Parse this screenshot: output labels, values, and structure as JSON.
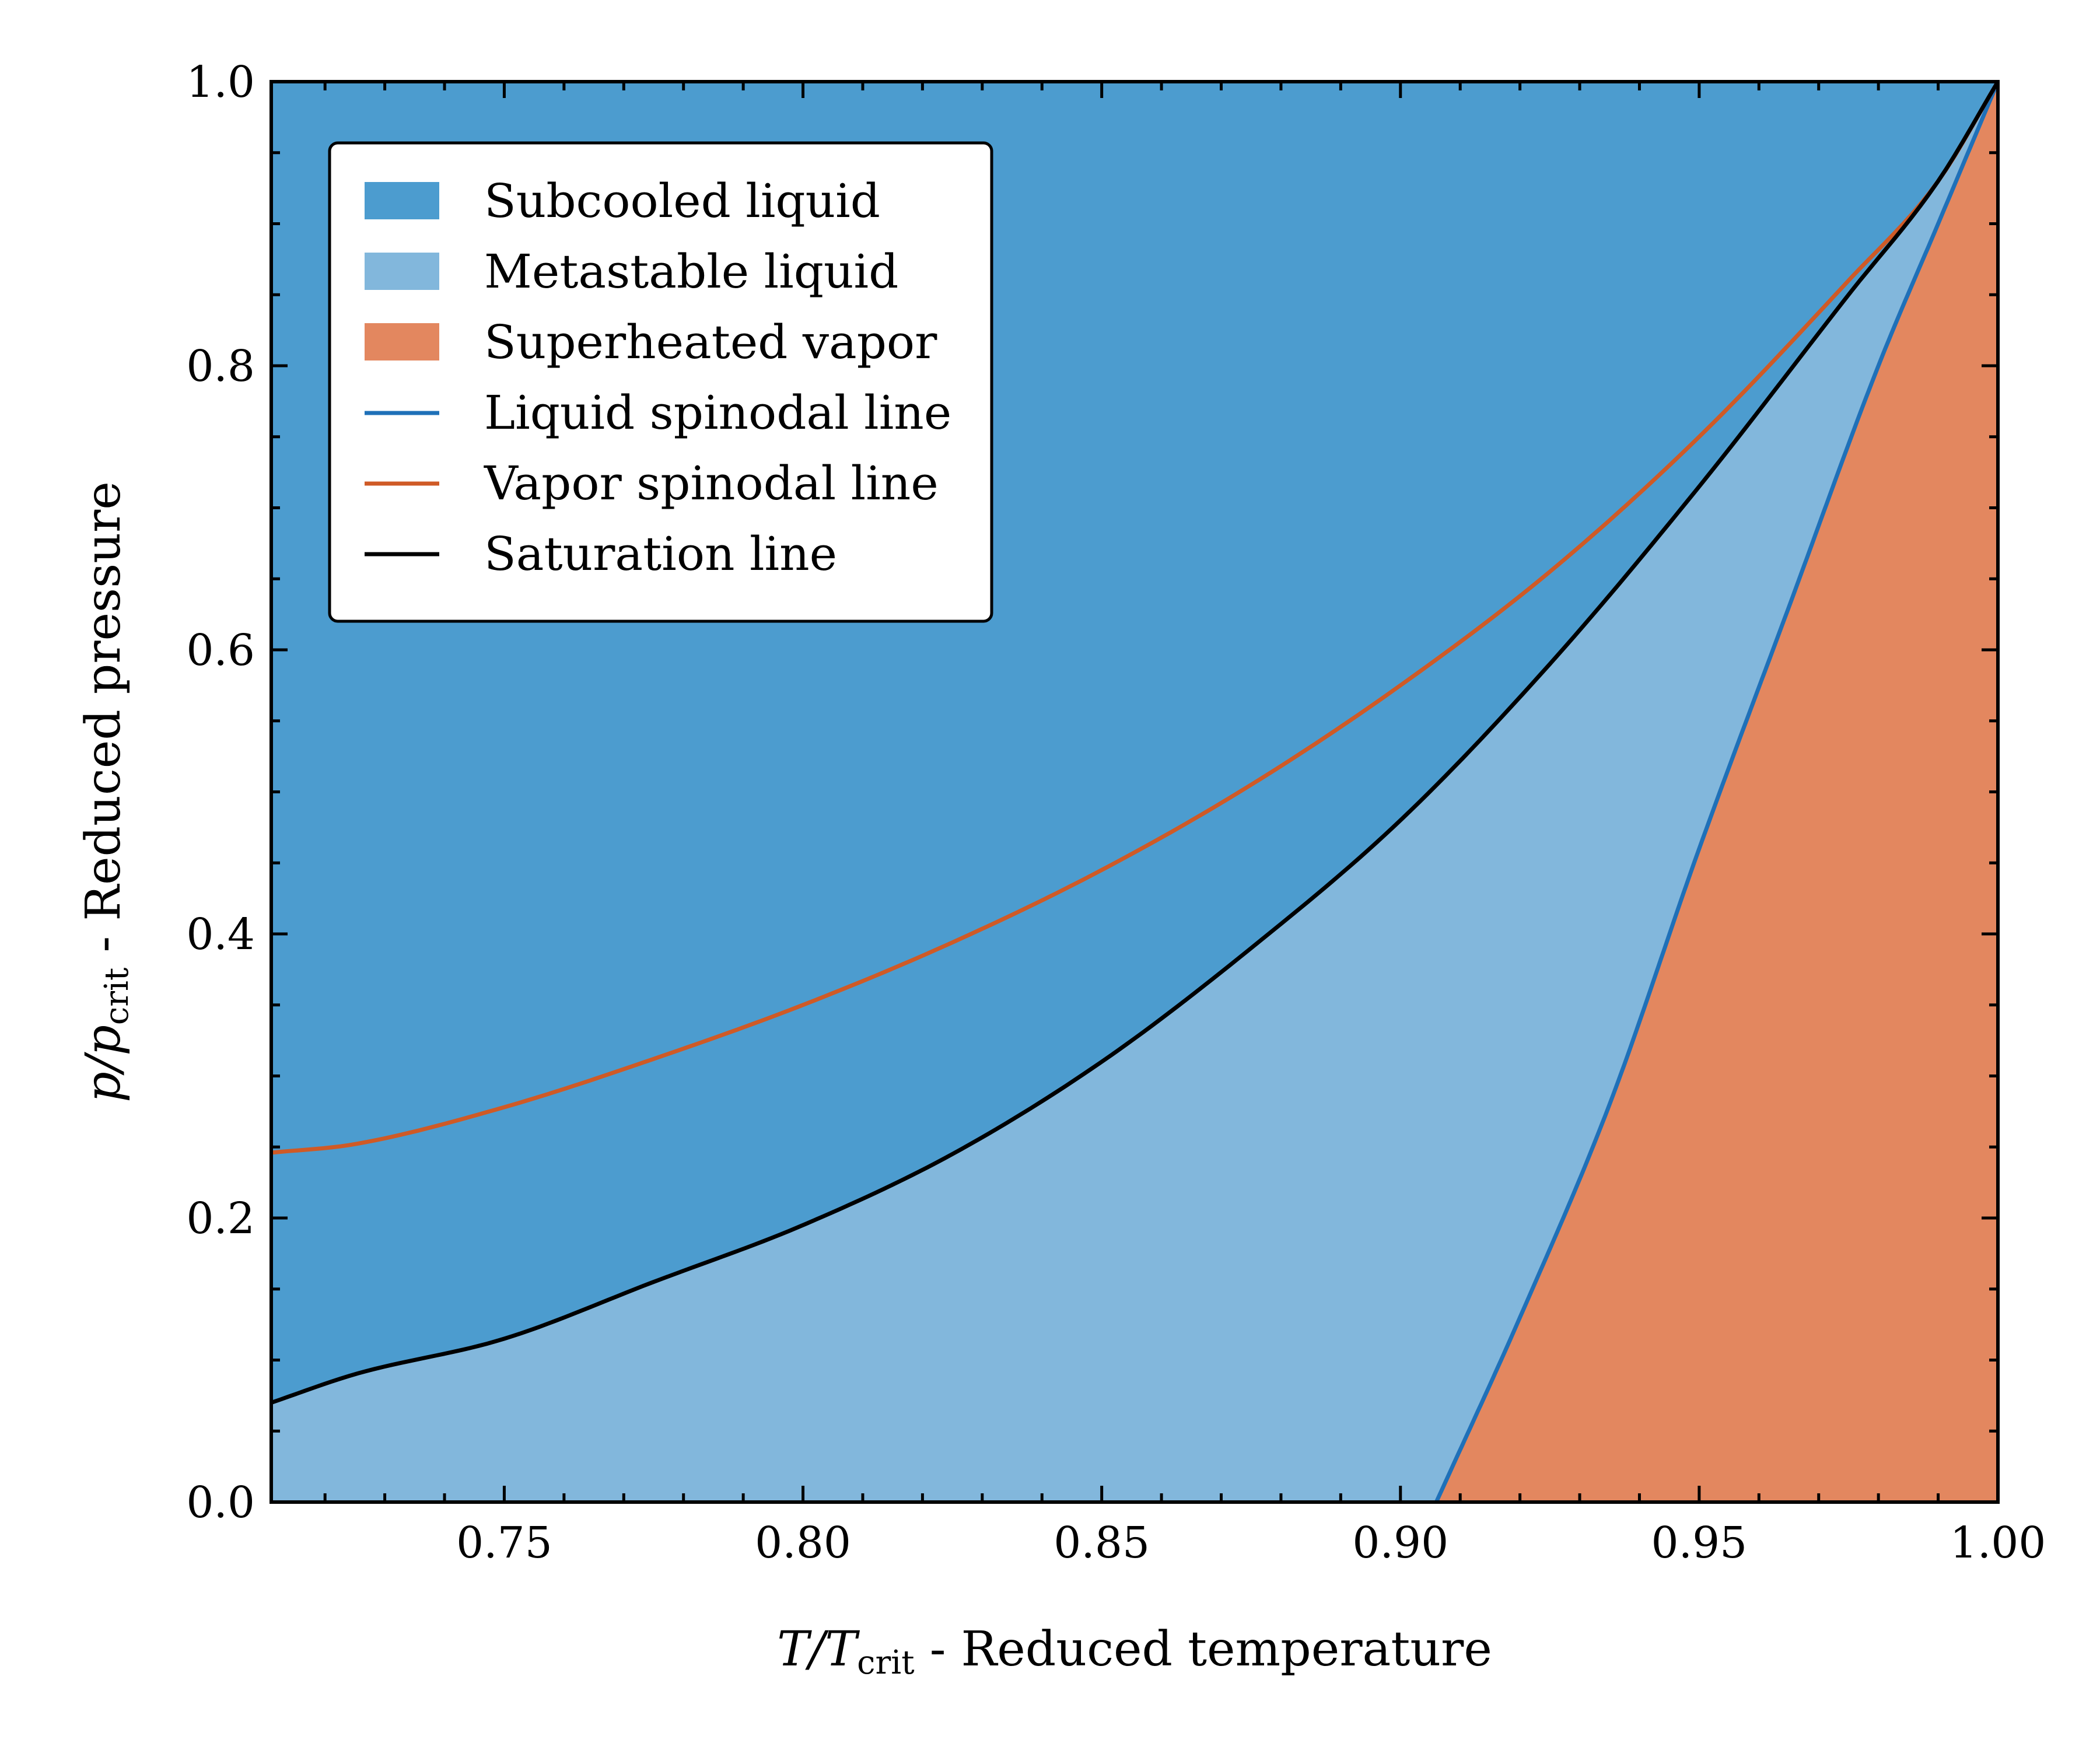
{
  "chart_data": {
    "type": "area",
    "title": "",
    "xlabel": {
      "main": "T/T",
      "sub": "crit",
      "rest": " - Reduced temperature"
    },
    "ylabel": {
      "main": "p/p",
      "sub": "crit",
      "rest": " - Reduced pressure"
    },
    "xlim": [
      0.711,
      1.0
    ],
    "ylim": [
      0.0,
      1.0
    ],
    "xticks": [
      0.75,
      0.8,
      0.85,
      0.9,
      0.95,
      1.0
    ],
    "xtick_labels": [
      "0.75",
      "0.80",
      "0.85",
      "0.90",
      "0.95",
      "1.00"
    ],
    "yticks": [
      0.0,
      0.2,
      0.4,
      0.6,
      0.8,
      1.0
    ],
    "ytick_labels": [
      "0.0",
      "0.2",
      "0.4",
      "0.6",
      "0.8",
      "1.0"
    ],
    "grid": false,
    "legend_position": "top-left",
    "colors": {
      "subcooled": "#4c9ccf",
      "metastable": "#82b7dc",
      "superheated": "#e3875f",
      "liquid_spinodal": "#1f70b8",
      "vapor_spinodal": "#cf5a26",
      "saturation": "#000000"
    },
    "legend": [
      {
        "label": "Subcooled liquid",
        "kind": "patch",
        "color_key": "subcooled"
      },
      {
        "label": "Metastable liquid",
        "kind": "patch",
        "color_key": "metastable"
      },
      {
        "label": "Superheated vapor",
        "kind": "patch",
        "color_key": "superheated"
      },
      {
        "label": "Liquid spinodal line",
        "kind": "line",
        "color_key": "liquid_spinodal"
      },
      {
        "label": "Vapor spinodal line",
        "kind": "line",
        "color_key": "vapor_spinodal"
      },
      {
        "label": "Saturation line",
        "kind": "line",
        "color_key": "saturation"
      }
    ],
    "series": [
      {
        "name": "Saturation line",
        "x": [
          0.711,
          0.725,
          0.75,
          0.775,
          0.8,
          0.825,
          0.85,
          0.875,
          0.9,
          0.925,
          0.95,
          0.975,
          0.99,
          1.0
        ],
        "y": [
          0.07,
          0.09,
          0.115,
          0.155,
          0.195,
          0.245,
          0.31,
          0.39,
          0.48,
          0.59,
          0.715,
          0.85,
          0.93,
          1.0
        ]
      },
      {
        "name": "Vapor spinodal line",
        "x": [
          0.711,
          0.725,
          0.75,
          0.775,
          0.8,
          0.825,
          0.85,
          0.875,
          0.9,
          0.925,
          0.95,
          0.975,
          0.99,
          1.0
        ],
        "y": [
          0.246,
          0.252,
          0.278,
          0.312,
          0.35,
          0.394,
          0.445,
          0.505,
          0.575,
          0.655,
          0.75,
          0.86,
          0.93,
          1.0
        ]
      },
      {
        "name": "Liquid spinodal line",
        "x": [
          0.906,
          0.92,
          0.935,
          0.95,
          0.965,
          0.98,
          0.99,
          1.0
        ],
        "y": [
          0.0,
          0.13,
          0.28,
          0.46,
          0.63,
          0.8,
          0.9,
          1.0
        ]
      }
    ]
  }
}
